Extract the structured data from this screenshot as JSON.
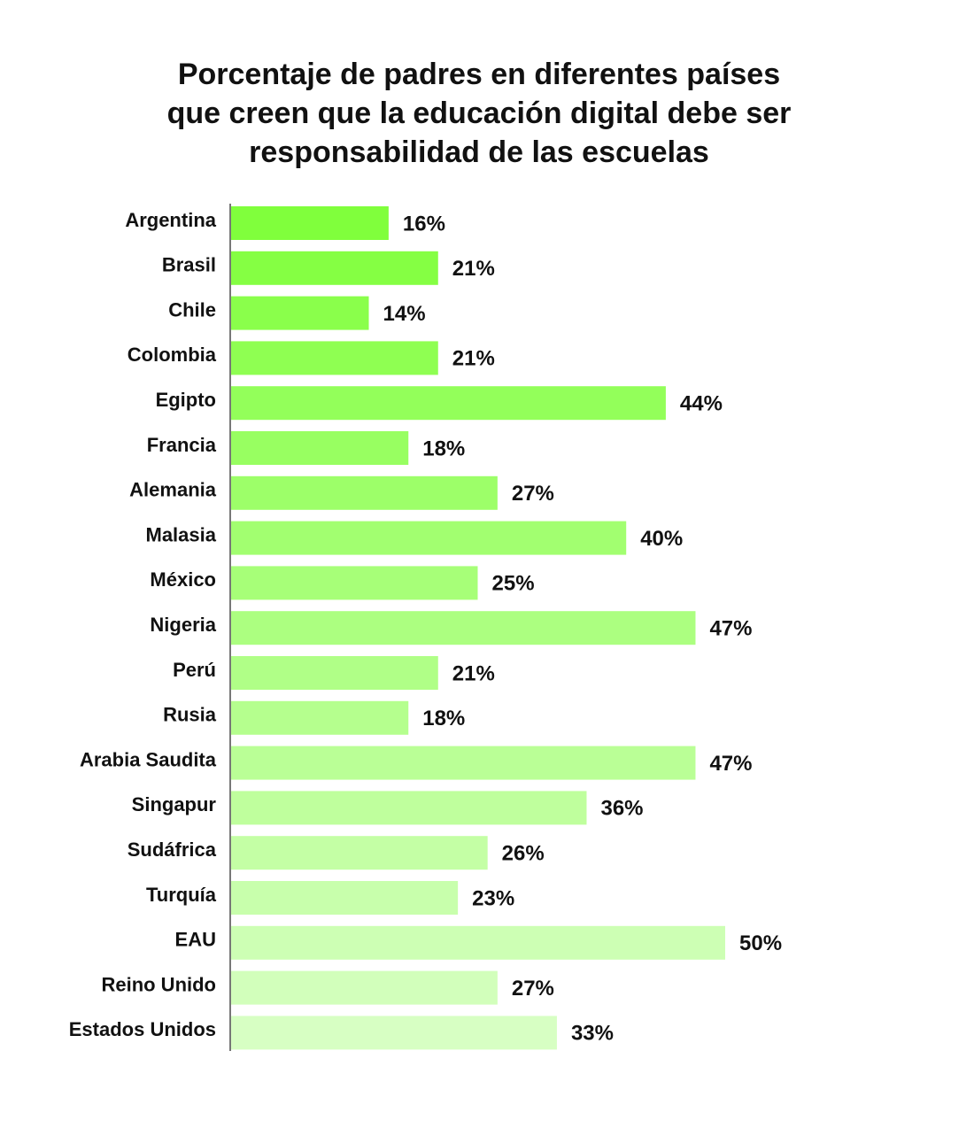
{
  "chart_data": {
    "type": "hbar",
    "title": [
      "Porcentaje de padres en diferentes países",
      "que creen que la educación digital debe ser",
      "responsabilidad de las escuelas"
    ],
    "categories": [
      "Argentina",
      "Brasil",
      "Chile",
      "Colombia",
      "Egipto",
      "Francia",
      "Alemania",
      "Malasia",
      "México",
      "Nigeria",
      "Perú",
      "Rusia",
      "Arabia Saudita",
      "Singapur",
      "Sudáfrica",
      "Turquía",
      "EAU",
      "Reino Unido",
      "Estados Unidos"
    ],
    "values": [
      16,
      21,
      14,
      21,
      44,
      18,
      27,
      40,
      25,
      47,
      21,
      18,
      47,
      36,
      26,
      23,
      50,
      27,
      33
    ],
    "value_labels": [
      "16%",
      "21%",
      "14%",
      "21%",
      "44%",
      "18%",
      "27%",
      "40%",
      "25%",
      "47%",
      "21%",
      "18%",
      "47%",
      "36%",
      "26%",
      "23%",
      "50%",
      "27%",
      "33%"
    ],
    "colors": [
      "#80ff3c",
      "#85ff43",
      "#8aff4b",
      "#8fff52",
      "#93ff5a",
      "#98ff61",
      "#9dff69",
      "#a2ff70",
      "#a7ff78",
      "#acff80",
      "#b0ff87",
      "#b5ff8e",
      "#baff96",
      "#bfff9d",
      "#c4ffa5",
      "#c8ffac",
      "#cdffb4",
      "#d2ffbb",
      "#d7ffc3"
    ],
    "xlim": [
      0,
      50
    ]
  }
}
